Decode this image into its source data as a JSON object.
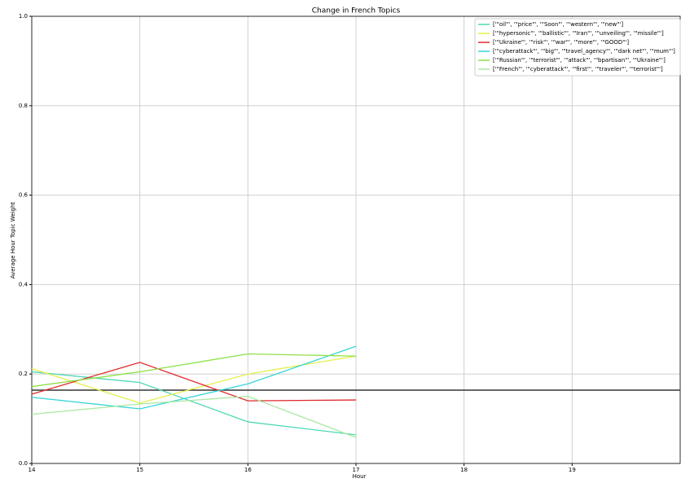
{
  "chart_data": {
    "type": "line",
    "title": "Change in French Topics",
    "x_label": "Hour",
    "y_label": "Average Hour Topic Weight",
    "x": [
      14,
      15,
      16,
      17
    ],
    "series": [
      {
        "name": "['\"oil\"', '\"price\"', '\"Soon\"', '\"western\"', '\"new\"']",
        "color": "#4fd8b4",
        "values": [
          0.205,
          0.181,
          0.093,
          0.064
        ]
      },
      {
        "name": "['\"hypersonic\"', '\"ballistic\"', '\"Iran\"', '\"unveiling\"', '\"missile\"']",
        "color": "#e2f04a",
        "values": [
          0.212,
          0.135,
          0.2,
          0.24
        ]
      },
      {
        "name": "['\"Ukraine\"', '\"risk\"', '\"war\"', '\"more\"', '\"GOOD\"']",
        "color": "#e0282c",
        "values": [
          0.155,
          0.226,
          0.14,
          0.142
        ]
      },
      {
        "name": "['\"cyberattack\"', '\"big\"', '\"travel_agency\"', '\"dark net\"', '\"mum\"']",
        "color": "#38d4d8",
        "values": [
          0.148,
          0.122,
          0.178,
          0.262
        ]
      },
      {
        "name": "['\"Russian\"', '\"terrorist\"', '\"attack\"', '\"bpartisan\"', '\"Ukraine\"']",
        "color": "#8ee04a",
        "values": [
          0.172,
          0.205,
          0.245,
          0.24
        ]
      },
      {
        "name": "['\"French\"', '\"cyberattack\"', '\"first\"', '\"traveler\"', '\"terrorist\"']",
        "color": "#a8e8a0",
        "values": [
          0.11,
          0.133,
          0.15,
          0.058
        ]
      }
    ],
    "hline": {
      "value": 0.164,
      "color": "#333333"
    },
    "xlim": [
      14,
      20
    ],
    "xticks": [
      14,
      15,
      16,
      17,
      18,
      19
    ],
    "ylim": [
      0,
      1
    ],
    "yticks": [
      {
        "value": 0,
        "label": "0.0"
      },
      0.2,
      0.4,
      0.6,
      0.8,
      {
        "value": 1,
        "label": "1.0"
      }
    ],
    "grid": true,
    "legend": "upper right"
  }
}
